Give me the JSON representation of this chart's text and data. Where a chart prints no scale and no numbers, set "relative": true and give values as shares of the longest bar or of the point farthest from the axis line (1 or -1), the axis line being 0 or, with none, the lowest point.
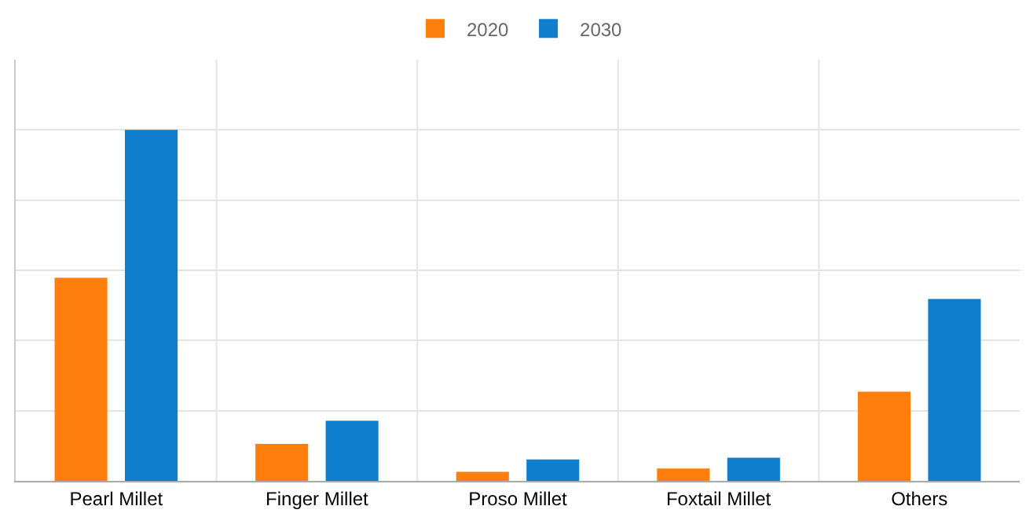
{
  "chart_data": {
    "type": "bar",
    "relative": true,
    "categories": [
      "Pearl Millet",
      "Finger Millet",
      "Proso Millet",
      "Foxtail Millet",
      "Others"
    ],
    "series": [
      {
        "name": "2020",
        "color": "#ff7f0e",
        "values": [
          0.579,
          0.105,
          0.026,
          0.035,
          0.254
        ]
      },
      {
        "name": "2030",
        "color": "#0f7fcd",
        "values": [
          1,
          0.171,
          0.061,
          0.066,
          0.518
        ]
      }
    ],
    "grid": true,
    "legend": "top"
  }
}
